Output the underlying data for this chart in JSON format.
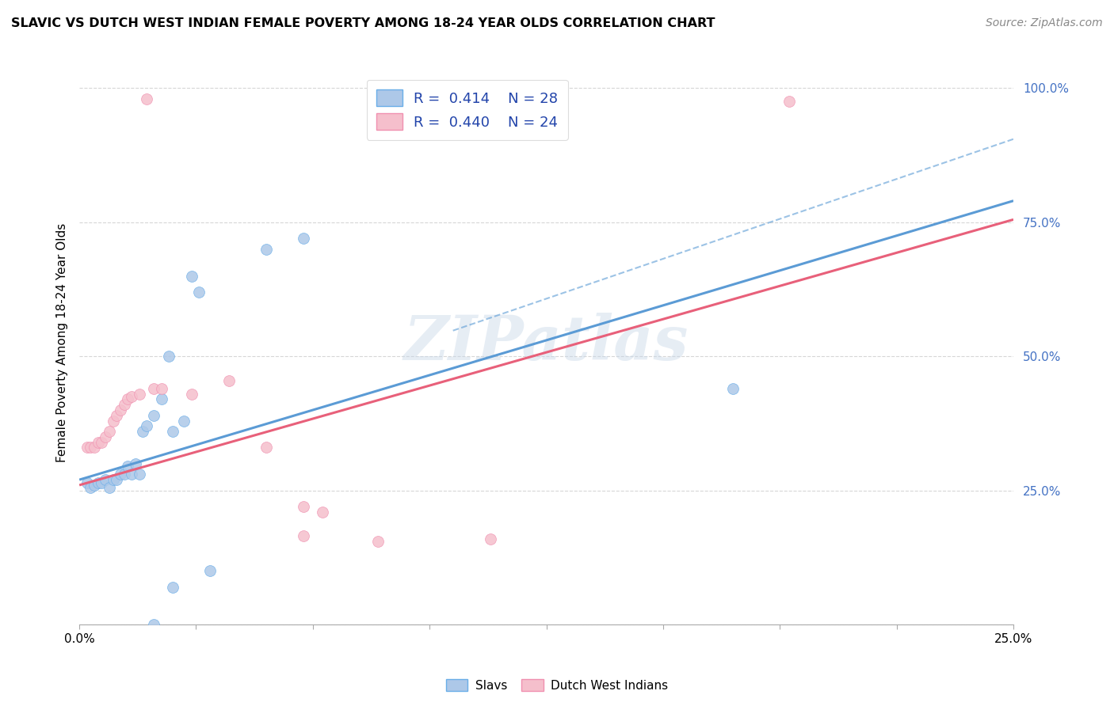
{
  "title": "SLAVIC VS DUTCH WEST INDIAN FEMALE POVERTY AMONG 18-24 YEAR OLDS CORRELATION CHART",
  "source": "Source: ZipAtlas.com",
  "ylabel": "Female Poverty Among 18-24 Year Olds",
  "watermark": "ZIPatlas",
  "slavs_color": "#adc8e8",
  "slavs_edge_color": "#6aaee8",
  "slavs_line_color": "#5b9bd5",
  "dutch_color": "#f5bfcc",
  "dutch_edge_color": "#f090b0",
  "dutch_line_color": "#e8607a",
  "slavs_scatter": [
    [
      0.002,
      0.265
    ],
    [
      0.003,
      0.255
    ],
    [
      0.004,
      0.26
    ],
    [
      0.005,
      0.265
    ],
    [
      0.006,
      0.265
    ],
    [
      0.007,
      0.27
    ],
    [
      0.008,
      0.255
    ],
    [
      0.009,
      0.27
    ],
    [
      0.01,
      0.27
    ],
    [
      0.011,
      0.28
    ],
    [
      0.012,
      0.28
    ],
    [
      0.013,
      0.295
    ],
    [
      0.014,
      0.28
    ],
    [
      0.015,
      0.3
    ],
    [
      0.016,
      0.28
    ],
    [
      0.017,
      0.36
    ],
    [
      0.018,
      0.37
    ],
    [
      0.02,
      0.39
    ],
    [
      0.022,
      0.42
    ],
    [
      0.024,
      0.5
    ],
    [
      0.025,
      0.36
    ],
    [
      0.028,
      0.38
    ],
    [
      0.03,
      0.65
    ],
    [
      0.032,
      0.62
    ],
    [
      0.05,
      0.7
    ],
    [
      0.06,
      0.72
    ],
    [
      0.175,
      0.44
    ],
    [
      0.02,
      0.0
    ],
    [
      0.025,
      0.07
    ],
    [
      0.035,
      0.1
    ]
  ],
  "dutch_scatter": [
    [
      0.002,
      0.33
    ],
    [
      0.003,
      0.33
    ],
    [
      0.004,
      0.33
    ],
    [
      0.005,
      0.34
    ],
    [
      0.006,
      0.34
    ],
    [
      0.007,
      0.35
    ],
    [
      0.008,
      0.36
    ],
    [
      0.009,
      0.38
    ],
    [
      0.01,
      0.39
    ],
    [
      0.011,
      0.4
    ],
    [
      0.012,
      0.41
    ],
    [
      0.013,
      0.42
    ],
    [
      0.014,
      0.425
    ],
    [
      0.016,
      0.43
    ],
    [
      0.02,
      0.44
    ],
    [
      0.022,
      0.44
    ],
    [
      0.03,
      0.43
    ],
    [
      0.04,
      0.455
    ],
    [
      0.05,
      0.33
    ],
    [
      0.06,
      0.22
    ],
    [
      0.065,
      0.21
    ],
    [
      0.11,
      0.16
    ],
    [
      0.018,
      0.98
    ],
    [
      0.19,
      0.975
    ],
    [
      0.06,
      0.165
    ],
    [
      0.08,
      0.155
    ]
  ],
  "slavs_line": [
    0.25,
    0.79
  ],
  "dutch_line": [
    0.26,
    0.755
  ],
  "slavs_dash_line": [
    0.3,
    0.87
  ],
  "xlim": [
    0.0,
    0.25
  ],
  "ylim": [
    0.0,
    1.05
  ],
  "figsize": [
    14.06,
    8.92
  ],
  "dpi": 100
}
